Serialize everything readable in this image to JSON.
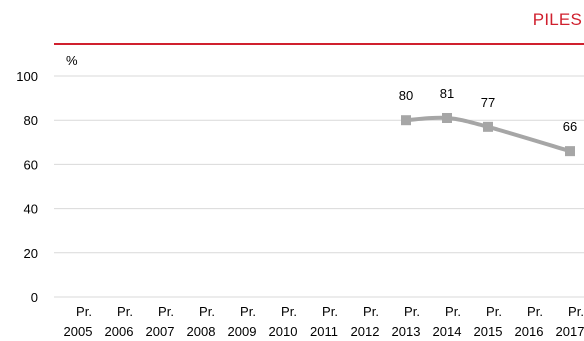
{
  "header": {
    "title": "PILES"
  },
  "chart_data": {
    "type": "line",
    "title": "PILES",
    "unit_label": "%",
    "xlabel": "",
    "ylabel": "",
    "ylim": [
      0,
      100
    ],
    "yticks": [
      0,
      20,
      40,
      60,
      80,
      100
    ],
    "categories": [
      [
        "Pr.",
        "2005"
      ],
      [
        "Pr.",
        "2006"
      ],
      [
        "Pr.",
        "2007"
      ],
      [
        "Pr.",
        "2008"
      ],
      [
        "Pr.",
        "2009"
      ],
      [
        "Pr.",
        "2010"
      ],
      [
        "Pr.",
        "2011"
      ],
      [
        "Pr.",
        "2012"
      ],
      [
        "Pr.",
        "2013"
      ],
      [
        "Pr.",
        "2014"
      ],
      [
        "Pr.",
        "2015"
      ],
      [
        "Pr.",
        "2016"
      ],
      [
        "Pr.",
        "2017"
      ]
    ],
    "series": [
      {
        "values": [
          null,
          null,
          null,
          null,
          null,
          null,
          null,
          null,
          80,
          81,
          77,
          null,
          66
        ],
        "color": "#a6a6a6",
        "marker": "square",
        "smooth": true
      }
    ],
    "grid": true,
    "legend": "none",
    "accent_color": "#d0202e",
    "grid_color": "#d9d9d9"
  }
}
